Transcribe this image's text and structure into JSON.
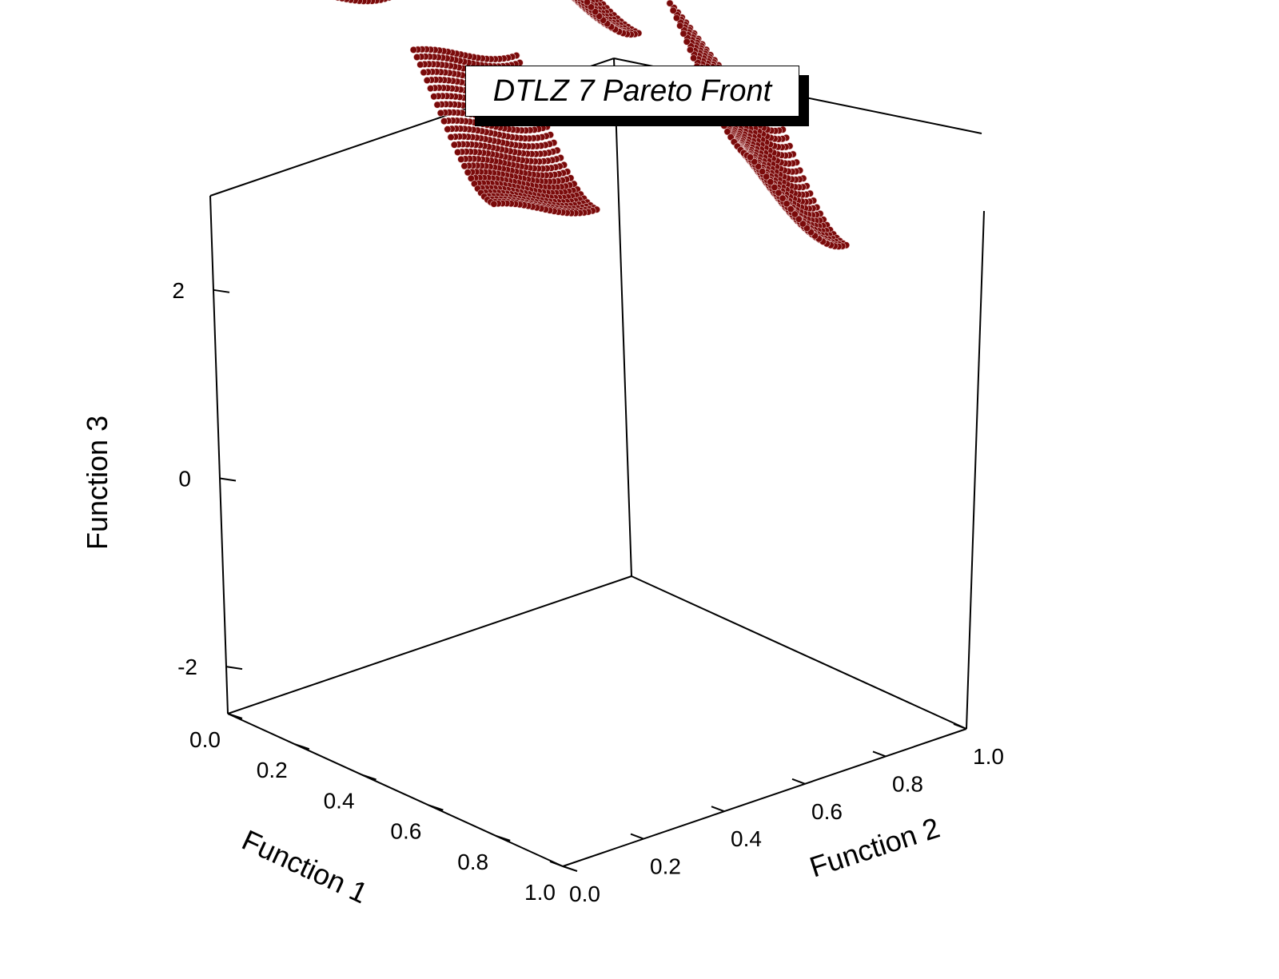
{
  "chart_data": {
    "type": "scatter",
    "title": "DTLZ 7 Pareto Front",
    "xlabel": "Function 1",
    "ylabel": "Function 2",
    "zlabel": "Function 3",
    "x_ticks": [
      "0.0",
      "0.2",
      "0.4",
      "0.6",
      "0.8",
      "1.0"
    ],
    "y_ticks": [
      "0.0",
      "0.2",
      "0.4",
      "0.6",
      "0.8",
      "1.0"
    ],
    "z_ticks": [
      "-2",
      "0",
      "2"
    ],
    "xlim": [
      0,
      1
    ],
    "ylim": [
      0,
      1
    ],
    "zlim": [
      -2.5,
      3
    ],
    "marker_color": "#7a0a0a",
    "marker_highlight": "#e8c8c8",
    "surface": "f3 = 2*(3 - sum_i f_i/2*(1+sin(3*pi*f_i))), with f1,f2 in the four disconnected regions [0,0.2514] and [0.6316,0.8594]",
    "regions": [
      {
        "f1": [
          0.0,
          0.2514
        ],
        "f2": [
          0.0,
          0.2514
        ]
      },
      {
        "f1": [
          0.6316,
          0.8594
        ],
        "f2": [
          0.0,
          0.2514
        ]
      },
      {
        "f1": [
          0.0,
          0.2514
        ],
        "f2": [
          0.6316,
          0.8594
        ]
      },
      {
        "f1": [
          0.6316,
          0.8594
        ],
        "f2": [
          0.6316,
          0.8594
        ]
      }
    ],
    "grid": false
  }
}
